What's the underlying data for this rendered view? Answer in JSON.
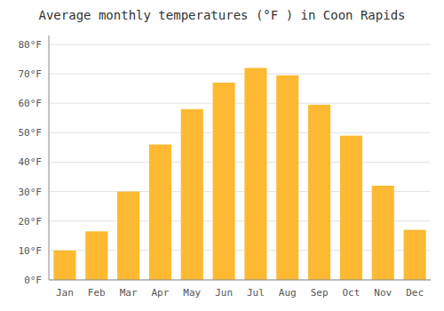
{
  "chart_data": {
    "type": "bar",
    "title": "Average monthly temperatures (°F ) in Coon Rapids",
    "categories": [
      "Jan",
      "Feb",
      "Mar",
      "Apr",
      "May",
      "Jun",
      "Jul",
      "Aug",
      "Sep",
      "Oct",
      "Nov",
      "Dec"
    ],
    "values": [
      10,
      16.5,
      30,
      46,
      58,
      67,
      72,
      69.5,
      59.5,
      49,
      32,
      17
    ],
    "color": "#FDB931",
    "ylim": [
      0,
      83
    ],
    "yticks": [
      {
        "value": 0,
        "label": "0°F"
      },
      {
        "value": 10,
        "label": "10°F"
      },
      {
        "value": 20,
        "label": "20°F"
      },
      {
        "value": 30,
        "label": "30°F"
      },
      {
        "value": 40,
        "label": "40°F"
      },
      {
        "value": 50,
        "label": "50°F"
      },
      {
        "value": 60,
        "label": "60°F"
      },
      {
        "value": 70,
        "label": "70°F"
      },
      {
        "value": 80,
        "label": "80°F"
      }
    ],
    "grid": true
  }
}
